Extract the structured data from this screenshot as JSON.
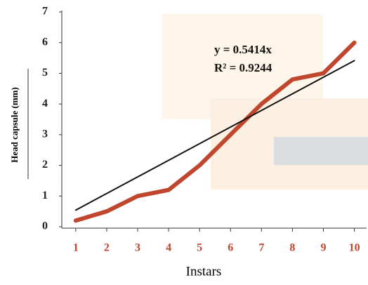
{
  "chart_data": {
    "type": "line",
    "x": [
      1,
      2,
      3,
      4,
      5,
      6,
      7,
      8,
      9,
      10
    ],
    "series": [
      {
        "color": "#c0462e",
        "values": [
          0.2,
          0.5,
          1.0,
          1.2,
          2.0,
          3.0,
          4.0,
          4.8,
          5.0,
          6.0
        ]
      }
    ],
    "trendline": {
      "x": [
        1,
        10
      ],
      "values": [
        0.5414,
        5.414
      ],
      "color": "#111111"
    },
    "annotations": [
      "y = 0.5414x",
      "R² = 0.9244"
    ],
    "xlabel": "Instars",
    "ylabel": "Head capsule (mm)",
    "xlim": [
      0.55,
      10.35
    ],
    "xticks": [
      1,
      2,
      3,
      4,
      5,
      6,
      7,
      8,
      9,
      10
    ],
    "ylim": [
      0,
      7
    ],
    "yticks": [
      0,
      1,
      2,
      3,
      4,
      5,
      6,
      7
    ]
  }
}
